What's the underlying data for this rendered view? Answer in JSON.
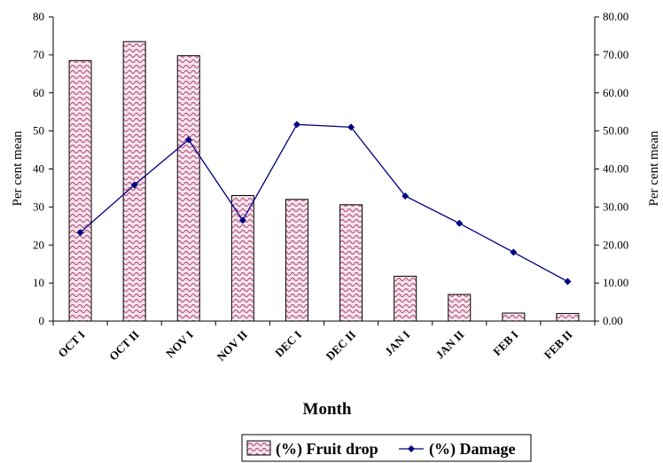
{
  "chart_data": {
    "type": "bar",
    "categories": [
      "OCT I",
      "OCT II",
      "NOV I",
      "NOV II",
      "DEC I",
      "DEC II",
      "JAN I",
      "JAN II",
      "FEB I",
      "FEB II"
    ],
    "series": [
      {
        "name": "(%) Fruit drop",
        "type": "bar",
        "axis": "left",
        "values": [
          68.5,
          73.5,
          69.8,
          33.0,
          32.0,
          30.6,
          11.8,
          7.0,
          2.1,
          2.0
        ]
      },
      {
        "name": "(%) Damage",
        "type": "line",
        "axis": "right",
        "values": [
          23.3,
          35.8,
          47.7,
          26.5,
          51.7,
          51.0,
          32.9,
          25.7,
          18.1,
          10.4
        ]
      }
    ],
    "xlabel": "Month",
    "ylabel_left": "Per cent mean",
    "ylabel_right": "Per cent mean",
    "ylim_left": [
      0,
      80
    ],
    "ylim_right": [
      0,
      80
    ],
    "yticks_left": [
      "0",
      "10",
      "20",
      "30",
      "40",
      "50",
      "60",
      "70",
      "80"
    ],
    "yticks_right": [
      "0.00",
      "10.00",
      "20.00",
      "30.00",
      "40.00",
      "50.00",
      "60.00",
      "70.00",
      "80.00"
    ],
    "grid": false,
    "legend_position": "bottom",
    "colors": {
      "bar_fill": "#f4e4ec",
      "bar_pattern": "#b03a6e",
      "bar_edge": "#000000",
      "line": "#000080"
    }
  }
}
